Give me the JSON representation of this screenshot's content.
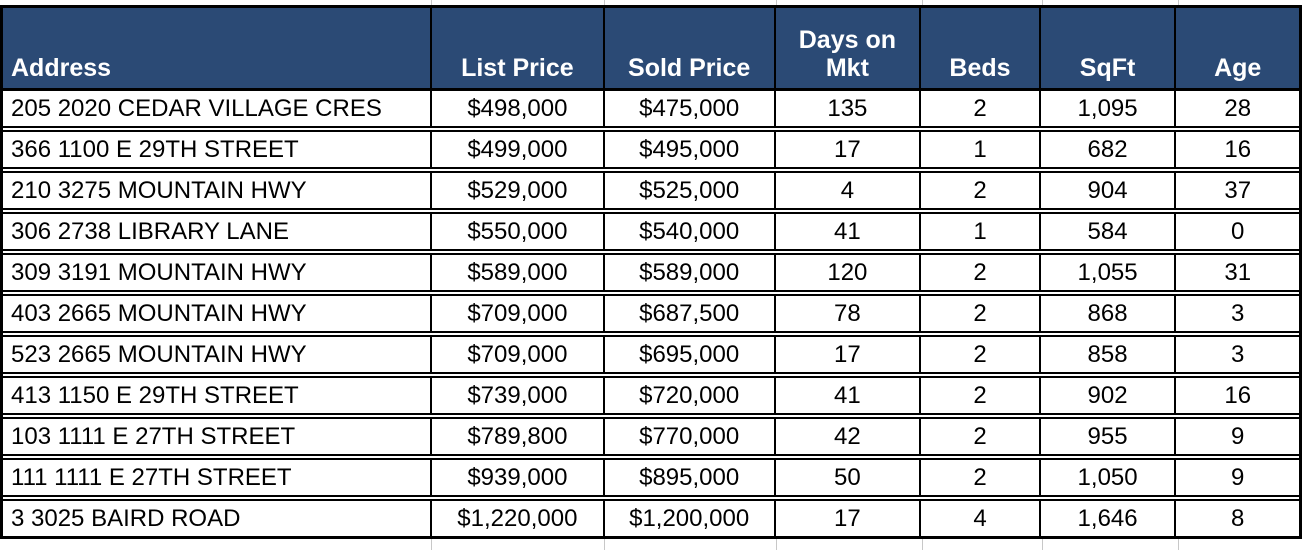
{
  "table": {
    "columns": [
      {
        "key": "address",
        "label": "Address"
      },
      {
        "key": "list_price",
        "label": "List Price"
      },
      {
        "key": "sold_price",
        "label": "Sold Price"
      },
      {
        "key": "days_on_mkt",
        "label": "Days on Mkt"
      },
      {
        "key": "beds",
        "label": "Beds"
      },
      {
        "key": "sqft",
        "label": "SqFt"
      },
      {
        "key": "age",
        "label": "Age"
      }
    ],
    "rows": [
      {
        "address": "205 2020 CEDAR VILLAGE CRES",
        "list_price": "$498,000",
        "sold_price": "$475,000",
        "days_on_mkt": "135",
        "beds": "2",
        "sqft": "1,095",
        "age": "28"
      },
      {
        "address": "366 1100 E 29TH STREET",
        "list_price": "$499,000",
        "sold_price": "$495,000",
        "days_on_mkt": "17",
        "beds": "1",
        "sqft": "682",
        "age": "16"
      },
      {
        "address": "210 3275 MOUNTAIN HWY",
        "list_price": "$529,000",
        "sold_price": "$525,000",
        "days_on_mkt": "4",
        "beds": "2",
        "sqft": "904",
        "age": "37"
      },
      {
        "address": "306 2738 LIBRARY LANE",
        "list_price": "$550,000",
        "sold_price": "$540,000",
        "days_on_mkt": "41",
        "beds": "1",
        "sqft": "584",
        "age": "0"
      },
      {
        "address": "309 3191 MOUNTAIN HWY",
        "list_price": "$589,000",
        "sold_price": "$589,000",
        "days_on_mkt": "120",
        "beds": "2",
        "sqft": "1,055",
        "age": "31"
      },
      {
        "address": "403 2665 MOUNTAIN HWY",
        "list_price": "$709,000",
        "sold_price": "$687,500",
        "days_on_mkt": "78",
        "beds": "2",
        "sqft": "868",
        "age": "3"
      },
      {
        "address": "523 2665 MOUNTAIN HWY",
        "list_price": "$709,000",
        "sold_price": "$695,000",
        "days_on_mkt": "17",
        "beds": "2",
        "sqft": "858",
        "age": "3"
      },
      {
        "address": "413 1150 E 29TH STREET",
        "list_price": "$739,000",
        "sold_price": "$720,000",
        "days_on_mkt": "41",
        "beds": "2",
        "sqft": "902",
        "age": "16"
      },
      {
        "address": "103 1111 E 27TH STREET",
        "list_price": "$789,800",
        "sold_price": "$770,000",
        "days_on_mkt": "42",
        "beds": "2",
        "sqft": "955",
        "age": "9"
      },
      {
        "address": "111 1111 E 27TH STREET",
        "list_price": "$939,000",
        "sold_price": "$895,000",
        "days_on_mkt": "50",
        "beds": "2",
        "sqft": "1,050",
        "age": "9"
      },
      {
        "address": "3 3025 BAIRD ROAD",
        "list_price": "$1,220,000",
        "sold_price": "$1,200,000",
        "days_on_mkt": "17",
        "beds": "4",
        "sqft": "1,646",
        "age": "8"
      }
    ]
  },
  "colors": {
    "header_bg": "#2b4a75",
    "header_text": "#ffffff",
    "border": "#000000",
    "gridline": "#c8c8c8",
    "cell_text": "#000000"
  },
  "chart_data": {
    "type": "table",
    "title": "",
    "columns": [
      "Address",
      "List Price",
      "Sold Price",
      "Days on Mkt",
      "Beds",
      "SqFt",
      "Age"
    ],
    "rows": [
      [
        "205 2020 CEDAR VILLAGE CRES",
        498000,
        475000,
        135,
        2,
        1095,
        28
      ],
      [
        "366 1100 E 29TH STREET",
        499000,
        495000,
        17,
        1,
        682,
        16
      ],
      [
        "210 3275 MOUNTAIN HWY",
        529000,
        525000,
        4,
        2,
        904,
        37
      ],
      [
        "306 2738 LIBRARY LANE",
        550000,
        540000,
        41,
        1,
        584,
        0
      ],
      [
        "309 3191 MOUNTAIN HWY",
        589000,
        589000,
        120,
        2,
        1055,
        31
      ],
      [
        "403 2665 MOUNTAIN HWY",
        709000,
        687500,
        78,
        2,
        868,
        3
      ],
      [
        "523 2665 MOUNTAIN HWY",
        709000,
        695000,
        17,
        2,
        858,
        3
      ],
      [
        "413 1150 E 29TH STREET",
        739000,
        720000,
        41,
        2,
        902,
        16
      ],
      [
        "103 1111 E 27TH STREET",
        789800,
        770000,
        42,
        2,
        955,
        9
      ],
      [
        "111 1111 E 27TH STREET",
        939000,
        895000,
        50,
        2,
        1050,
        9
      ],
      [
        "3 3025 BAIRD ROAD",
        1220000,
        1200000,
        17,
        4,
        1646,
        8
      ]
    ]
  }
}
